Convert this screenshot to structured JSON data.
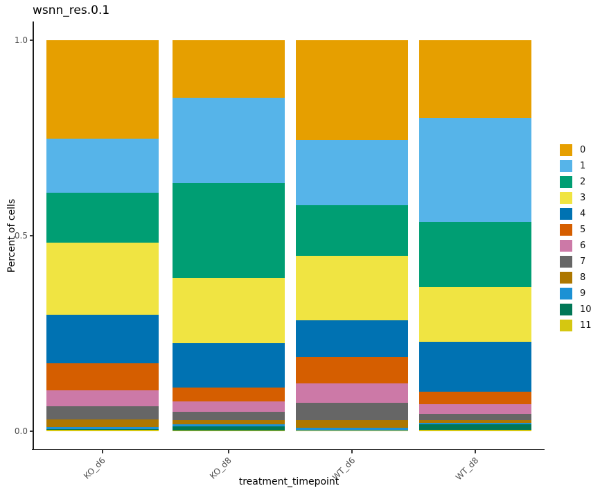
{
  "title": "wsnn_res.0.1",
  "axes": {
    "y_label": "Percent of cells",
    "x_label": "treatment_timepoint",
    "y_ticks": [
      "1.0",
      "0.5",
      "0.0"
    ],
    "x_ticks": [
      "KO_d6",
      "KO_d8",
      "WT_d6",
      "WT_d8"
    ]
  },
  "legend": {
    "position": "right",
    "labels": [
      "0",
      "1",
      "2",
      "3",
      "4",
      "5",
      "6",
      "7",
      "8",
      "9",
      "10",
      "11"
    ]
  },
  "chart_data": {
    "type": "bar",
    "stacked": true,
    "normalized": true,
    "title": "wsnn_res.0.1",
    "xlabel": "treatment_timepoint",
    "ylabel": "Percent of cells",
    "ylim": [
      0,
      1
    ],
    "y_tick_values": [
      1.0,
      0.5,
      0.0
    ],
    "grid": false,
    "legend_position": "right",
    "categories": [
      "KO_d6",
      "KO_d8",
      "WT_d6",
      "WT_d8"
    ],
    "series": [
      {
        "name": "0",
        "color": "#E69F00",
        "values": [
          0.251,
          0.148,
          0.256,
          0.1985
        ]
      },
      {
        "name": "1",
        "color": "#56B4E9",
        "values": [
          0.139,
          0.218,
          0.166,
          0.266
        ]
      },
      {
        "name": "2",
        "color": "#009E73",
        "values": [
          0.128,
          0.243,
          0.129,
          0.166
        ]
      },
      {
        "name": "3",
        "color": "#F0E442",
        "values": [
          0.184,
          0.165,
          0.165,
          0.14
        ]
      },
      {
        "name": "4",
        "color": "#0072B2",
        "values": [
          0.124,
          0.115,
          0.094,
          0.128
        ]
      },
      {
        "name": "5",
        "color": "#D55E00",
        "values": [
          0.069,
          0.035,
          0.068,
          0.032
        ]
      },
      {
        "name": "6",
        "color": "#CC79A7",
        "values": [
          0.041,
          0.026,
          0.049,
          0.025
        ]
      },
      {
        "name": "7",
        "color": "#666666",
        "values": [
          0.033,
          0.022,
          0.044,
          0.0165
        ]
      },
      {
        "name": "8",
        "color": "#AD7700",
        "values": [
          0.02,
          0.0105,
          0.021,
          0.006
        ]
      },
      {
        "name": "9",
        "color": "#1C91D4",
        "values": [
          0.0065,
          0.0045,
          0.0055,
          0.004
        ]
      },
      {
        "name": "10",
        "color": "#007756",
        "values": [
          0.0005,
          0.0107,
          0.0008,
          0.0137
        ]
      },
      {
        "name": "11",
        "color": "#D5C711",
        "values": [
          0.004,
          0.0023,
          0.0017,
          0.0043
        ]
      }
    ]
  }
}
